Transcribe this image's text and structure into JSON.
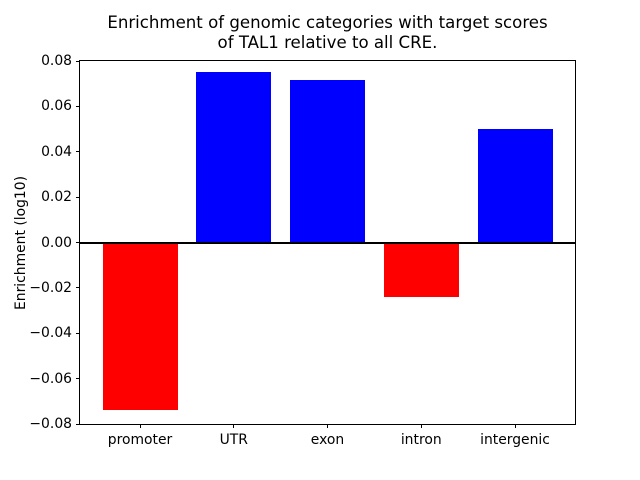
{
  "figure": {
    "title_line1": "Enrichment of genomic categories with target scores",
    "title_line2": "of TAL1 relative to all CRE."
  },
  "chart_data": {
    "type": "bar",
    "title": "Enrichment of genomic categories with target scores of TAL1 relative to all CRE.",
    "categories": [
      "promoter",
      "UTR",
      "exon",
      "intron",
      "intergenic"
    ],
    "values": [
      -0.074,
      0.075,
      0.0715,
      -0.024,
      0.05
    ],
    "colors": {
      "positive": "#0000ff",
      "negative": "#ff0000"
    },
    "xlabel": "",
    "ylabel": "Enrichment (log10)",
    "ylim": [
      -0.08,
      0.08
    ],
    "xlim": [
      -0.64,
      4.64
    ],
    "bar_width": 0.8,
    "yticks": [
      {
        "value": 0.08,
        "label": "0.08"
      },
      {
        "value": 0.06,
        "label": "0.06"
      },
      {
        "value": 0.04,
        "label": "0.04"
      },
      {
        "value": 0.02,
        "label": "0.02"
      },
      {
        "value": 0.0,
        "label": "0.00"
      },
      {
        "value": -0.02,
        "label": "−0.02"
      },
      {
        "value": -0.04,
        "label": "−0.04"
      },
      {
        "value": -0.06,
        "label": "−0.06"
      },
      {
        "value": -0.08,
        "label": "−0.08"
      }
    ],
    "zero_line": true,
    "grid": false,
    "legend_position": "none"
  }
}
